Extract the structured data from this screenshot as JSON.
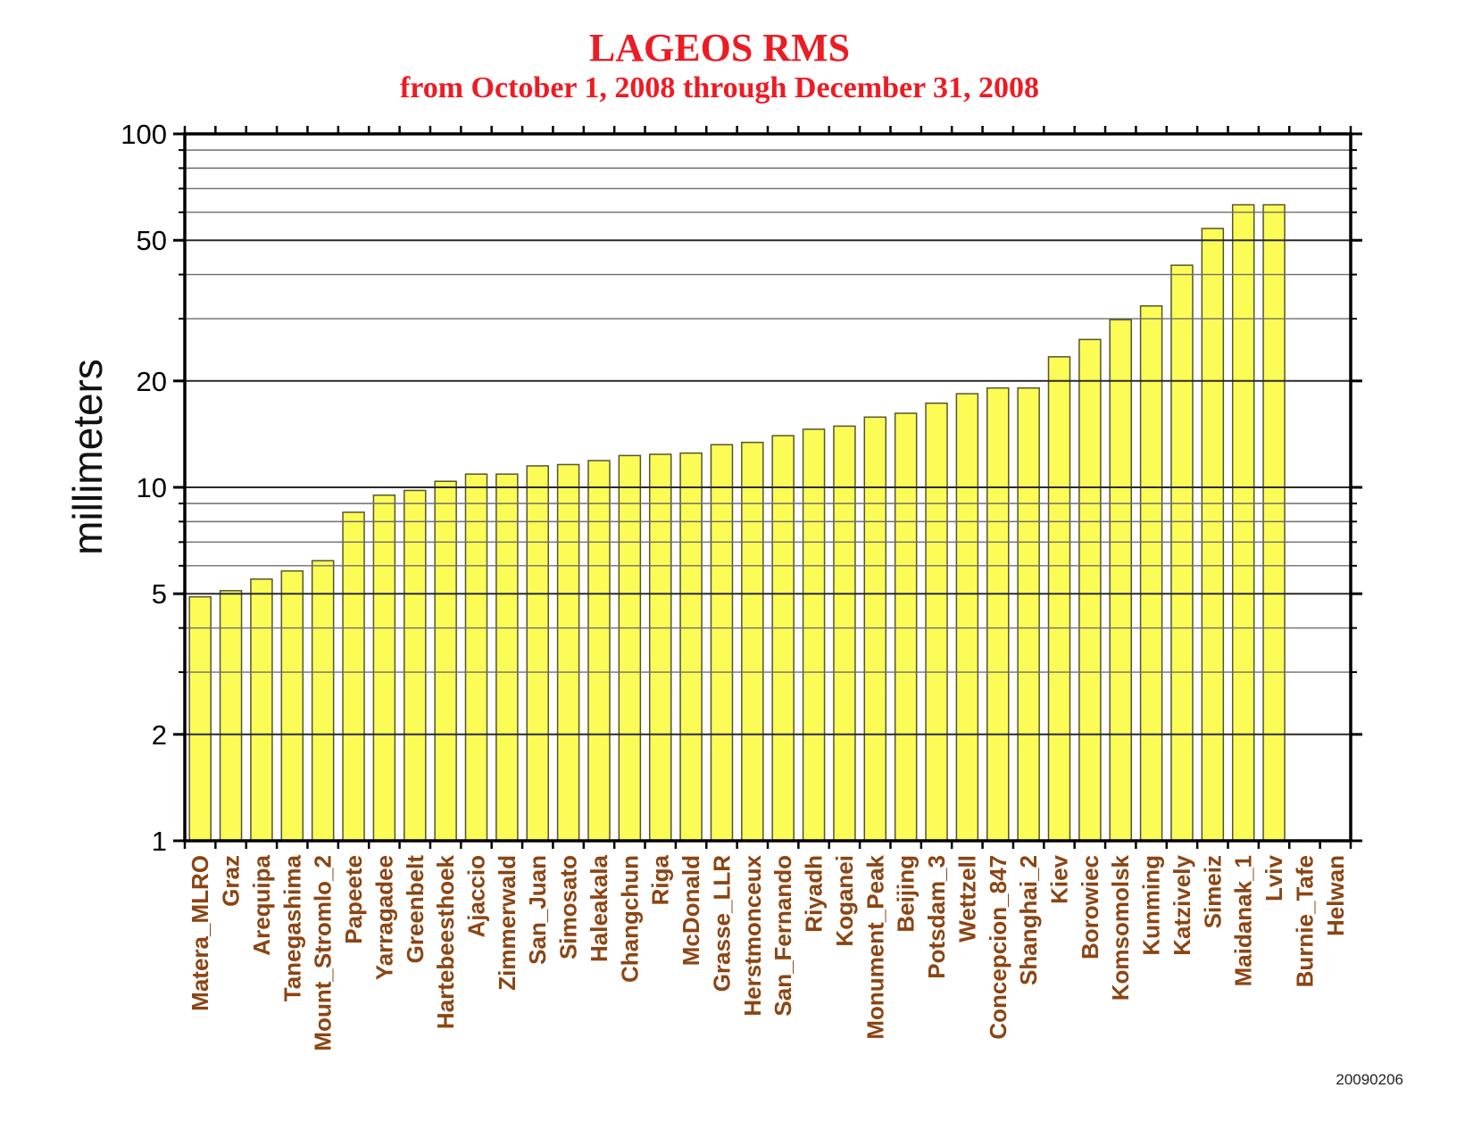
{
  "chart_data": {
    "type": "bar",
    "title": "LAGEOS RMS",
    "subtitle": "from October 1, 2008 through December 31, 2008",
    "xlabel": "",
    "ylabel": "millimeters",
    "y_scale": "log",
    "ylim": [
      1,
      100
    ],
    "y_major_ticks": [
      1,
      2,
      5,
      10,
      20,
      50,
      100
    ],
    "y_minor_gridlines": [
      3,
      4,
      6,
      7,
      8,
      9,
      30,
      40,
      60,
      70,
      80,
      90
    ],
    "grid": true,
    "legend": "none",
    "categories": [
      "Matera_MLRO",
      "Graz",
      "Arequipa",
      "Tanegashima",
      "Mount_Stromlo_2",
      "Papeete",
      "Yarragadee",
      "Greenbelt",
      "Hartebeesthoek",
      "Ajaccio",
      "Zimmerwald",
      "San_Juan",
      "Simosato",
      "Haleakala",
      "Changchun",
      "Riga",
      "McDonald",
      "Grasse_LLR",
      "Herstmonceux",
      "San_Fernando",
      "Riyadh",
      "Koganei",
      "Monument_Peak",
      "Beijing",
      "Potsdam_3",
      "Wettzell",
      "Concepcion_847",
      "Shanghai_2",
      "Kiev",
      "Borowiec",
      "Komsomolsk",
      "Kunming",
      "Katzively",
      "Simeiz",
      "Maidanak_1",
      "Lviv",
      "Burnie_Tafe",
      "Helwan"
    ],
    "values": [
      4.9,
      5.1,
      5.5,
      5.8,
      6.2,
      8.5,
      9.5,
      9.8,
      10.4,
      10.9,
      10.9,
      11.5,
      11.6,
      11.9,
      12.3,
      12.4,
      12.5,
      13.2,
      13.4,
      14.0,
      14.6,
      14.9,
      15.8,
      16.2,
      17.3,
      18.4,
      19.1,
      19.1,
      23.4,
      26.2,
      29.8,
      32.6,
      42.5,
      54.0,
      63.0,
      63.0,
      null,
      null
    ]
  },
  "footer": {
    "datestamp": "20090206"
  },
  "colors": {
    "title": "#ec1c24",
    "station_label": "#8b4513",
    "bar_fill": "#fcfc57",
    "bar_edge": "#55552e",
    "major_grid": "#2a2a2a",
    "minor_grid": "#6e6e6e",
    "axis": "#000000",
    "tick_label": "#000000"
  }
}
